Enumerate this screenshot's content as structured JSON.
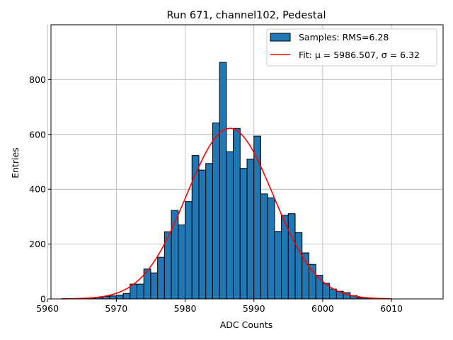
{
  "chart_data": {
    "type": "bar",
    "title": "Run 671, channel102, Pedestal",
    "xlabel": "ADC Counts",
    "ylabel": "Entries",
    "xlim": [
      5960.5,
      6017.5
    ],
    "ylim": [
      0,
      1000
    ],
    "xticks": [
      5960,
      5970,
      5980,
      5990,
      6000,
      6010
    ],
    "yticks": [
      0,
      200,
      400,
      600,
      800
    ],
    "grid": true,
    "legend_position": "top-right",
    "histogram": {
      "name": "Samples: RMS=6.28",
      "color": "#1f77b4",
      "bin_width": 1,
      "bin_starts": [
        5964,
        5965,
        5966,
        5967,
        5968,
        5969,
        5970,
        5971,
        5972,
        5973,
        5974,
        5975,
        5976,
        5977,
        5978,
        5979,
        5980,
        5981,
        5982,
        5983,
        5984,
        5985,
        5986,
        5987,
        5988,
        5989,
        5990,
        5991,
        5992,
        5993,
        5994,
        5995,
        5996,
        5997,
        5998,
        5999,
        6000,
        6001,
        6002,
        6003,
        6004,
        6005,
        6006
      ],
      "counts": [
        1,
        2,
        3,
        5,
        9,
        11,
        14,
        20,
        54,
        54,
        109,
        95,
        152,
        245,
        323,
        270,
        355,
        523,
        470,
        494,
        642,
        863,
        537,
        622,
        476,
        510,
        594,
        383,
        369,
        246,
        305,
        311,
        242,
        168,
        126,
        86,
        57,
        36,
        28,
        23,
        12,
        4,
        1
      ]
    },
    "fit": {
      "name": "Fit: μ = 5986.507, σ = 6.32",
      "color": "#ff0000",
      "mu": 5986.507,
      "sigma": 6.32,
      "amplitude": 622,
      "x_range": [
        5962,
        6010
      ]
    }
  }
}
